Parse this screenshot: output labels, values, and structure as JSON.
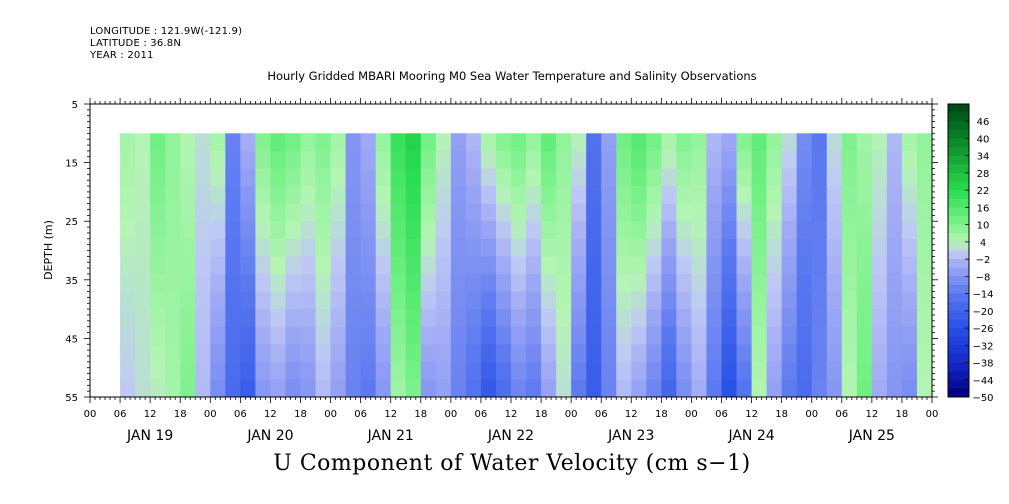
{
  "header": {
    "longitude": "LONGITUDE : 121.9W(-121.9)",
    "latitude": "LATITUDE : 36.8N",
    "year": "YEAR : 2011"
  },
  "chart_data": {
    "type": "heatmap",
    "title": "Hourly Gridded MBARI Mooring M0 Sea Water Temperature and Salinity Observations",
    "bottom_title": "U Component of Water Velocity (cm s−1)",
    "ylabel": "DEPTH (m)",
    "yticks": [
      "5",
      "15",
      "25",
      "35",
      "45",
      "55"
    ],
    "ylim": [
      55,
      5
    ],
    "xlim_hours": [
      0,
      168
    ],
    "data_start_hour": 6,
    "data_depth_range": [
      10,
      55
    ],
    "day_labels": [
      "JAN 19",
      "JAN 20",
      "JAN 21",
      "JAN 22",
      "JAN 23",
      "JAN 24",
      "JAN 25"
    ],
    "hour_labels": [
      "00",
      "06",
      "12",
      "18",
      "00",
      "06",
      "12",
      "18",
      "00",
      "06",
      "12",
      "18",
      "00",
      "06",
      "12",
      "18",
      "00",
      "06",
      "12",
      "18",
      "00",
      "06",
      "12",
      "18",
      "00",
      "06",
      "12",
      "18",
      "00"
    ],
    "colorbar_labels": [
      "46",
      "40",
      "34",
      "28",
      "22",
      "16",
      "10",
      "4",
      "−2",
      "−8",
      "−14",
      "−20",
      "−26",
      "−32",
      "−38",
      "−44",
      "−50"
    ],
    "colorbar_range": [
      -50,
      52
    ],
    "columns": [
      {
        "hour": 6,
        "surface": 6,
        "bottom": 0
      },
      {
        "hour": 9,
        "surface": 4,
        "bottom": 2
      },
      {
        "hour": 12,
        "surface": 12,
        "bottom": 3
      },
      {
        "hour": 15,
        "surface": 8,
        "bottom": 6
      },
      {
        "hour": 18,
        "surface": 4,
        "bottom": 10
      },
      {
        "hour": 21,
        "surface": 2,
        "bottom": -2
      },
      {
        "hour": 24,
        "surface": 6,
        "bottom": -10
      },
      {
        "hour": 27,
        "surface": -12,
        "bottom": -18
      },
      {
        "hour": 30,
        "surface": -3,
        "bottom": -22
      },
      {
        "hour": 33,
        "surface": 10,
        "bottom": -8
      },
      {
        "hour": 36,
        "surface": 14,
        "bottom": -6
      },
      {
        "hour": 39,
        "surface": 12,
        "bottom": -10
      },
      {
        "hour": 42,
        "surface": 8,
        "bottom": -8
      },
      {
        "hour": 45,
        "surface": 10,
        "bottom": -2
      },
      {
        "hour": 48,
        "surface": 6,
        "bottom": -6
      },
      {
        "hour": 51,
        "surface": -8,
        "bottom": -12
      },
      {
        "hour": 54,
        "surface": -4,
        "bottom": -14
      },
      {
        "hour": 57,
        "surface": 8,
        "bottom": -8
      },
      {
        "hour": 60,
        "surface": 20,
        "bottom": 6
      },
      {
        "hour": 63,
        "surface": 24,
        "bottom": 10
      },
      {
        "hour": 66,
        "surface": 12,
        "bottom": -8
      },
      {
        "hour": 69,
        "surface": 4,
        "bottom": -6
      },
      {
        "hour": 72,
        "surface": -6,
        "bottom": -12
      },
      {
        "hour": 75,
        "surface": -2,
        "bottom": -16
      },
      {
        "hour": 78,
        "surface": 6,
        "bottom": -24
      },
      {
        "hour": 81,
        "surface": 10,
        "bottom": -18
      },
      {
        "hour": 84,
        "surface": 12,
        "bottom": -12
      },
      {
        "hour": 87,
        "surface": 8,
        "bottom": -14
      },
      {
        "hour": 90,
        "surface": 14,
        "bottom": -6
      },
      {
        "hour": 93,
        "surface": 8,
        "bottom": 2
      },
      {
        "hour": 96,
        "surface": 4,
        "bottom": -14
      },
      {
        "hour": 99,
        "surface": -16,
        "bottom": -22
      },
      {
        "hour": 102,
        "surface": -6,
        "bottom": -12
      },
      {
        "hour": 105,
        "surface": 12,
        "bottom": -2
      },
      {
        "hour": 108,
        "surface": 16,
        "bottom": -6
      },
      {
        "hour": 111,
        "surface": 12,
        "bottom": -12
      },
      {
        "hour": 114,
        "surface": 6,
        "bottom": -20
      },
      {
        "hour": 117,
        "surface": 10,
        "bottom": -10
      },
      {
        "hour": 120,
        "surface": 8,
        "bottom": -4
      },
      {
        "hour": 123,
        "surface": -2,
        "bottom": -14
      },
      {
        "hour": 126,
        "surface": -4,
        "bottom": -26
      },
      {
        "hour": 129,
        "surface": 10,
        "bottom": -16
      },
      {
        "hour": 132,
        "surface": 14,
        "bottom": 4
      },
      {
        "hour": 135,
        "surface": 8,
        "bottom": -6
      },
      {
        "hour": 138,
        "surface": 2,
        "bottom": -14
      },
      {
        "hour": 141,
        "surface": -10,
        "bottom": -18
      },
      {
        "hour": 144,
        "surface": -14,
        "bottom": -12
      },
      {
        "hour": 147,
        "surface": 2,
        "bottom": -8
      },
      {
        "hour": 150,
        "surface": 10,
        "bottom": 4
      },
      {
        "hour": 153,
        "surface": 6,
        "bottom": 12
      },
      {
        "hour": 156,
        "surface": 4,
        "bottom": -4
      },
      {
        "hour": 159,
        "surface": -2,
        "bottom": -8
      },
      {
        "hour": 162,
        "surface": 6,
        "bottom": -10
      },
      {
        "hour": 165,
        "surface": 8,
        "bottom": 4
      },
      {
        "hour": 168,
        "surface": 4,
        "bottom": 6
      }
    ]
  }
}
